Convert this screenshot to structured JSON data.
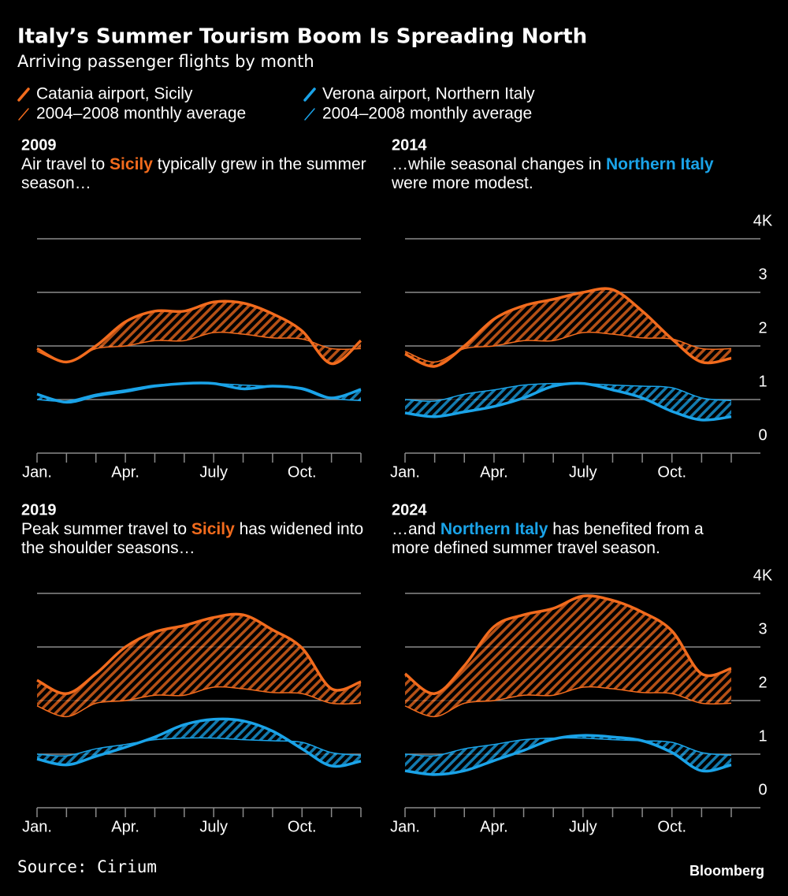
{
  "header": {
    "title": "Italy’s Summer Tourism Boom Is Spreading North",
    "subtitle": "Arriving passenger flights by month"
  },
  "chart_data": [
    {
      "type": "line",
      "title": "2009",
      "annotation": {
        "before": "Air travel to ",
        "highlight": "Sicily",
        "highlight_color": "#f26b1d",
        "after": " typically grew in the summer season…"
      },
      "categories": [
        "Jan.",
        null,
        null,
        "Apr.",
        null,
        null,
        "July",
        null,
        null,
        "Oct.",
        null,
        null
      ],
      "ylim": [
        0,
        4
      ],
      "yticks": [
        0,
        1,
        2,
        3,
        {
          "value": 4,
          "label": "4K"
        }
      ],
      "ytick_labels": false,
      "grid": true,
      "series": [
        {
          "name": "Catania airport, Sicily",
          "color": "#f26b1d",
          "line_width": 3.5,
          "values": [
            1.95,
            1.7,
            2.0,
            2.45,
            2.65,
            2.65,
            2.82,
            2.8,
            2.6,
            2.28,
            1.67,
            2.1
          ]
        },
        {
          "name": "2004–2008 monthly average",
          "color": "#f26b1d",
          "line_width": 1.5,
          "values": [
            1.9,
            1.7,
            1.95,
            2.0,
            2.1,
            2.1,
            2.25,
            2.22,
            2.15,
            2.13,
            1.95,
            1.95
          ]
        },
        {
          "name": "Verona airport, Northern Italy",
          "color": "#1aa3e8",
          "line_width": 3.5,
          "values": [
            1.1,
            0.95,
            1.07,
            1.15,
            1.25,
            1.3,
            1.3,
            1.2,
            1.25,
            1.2,
            1.03,
            1.19
          ]
        },
        {
          "name": "2004–2008 monthly average",
          "color": "#1aa3e8",
          "line_width": 1.5,
          "values": [
            1.0,
            0.97,
            1.1,
            1.18,
            1.27,
            1.3,
            1.3,
            1.27,
            1.25,
            1.22,
            1.03,
            0.98
          ]
        }
      ]
    },
    {
      "type": "line",
      "title": "2014",
      "annotation": {
        "before": "…while seasonal changes in ",
        "highlight": "Northern Italy",
        "highlight_color": "#1aa3e8",
        "after": " were more modest."
      },
      "categories": [
        "Jan.",
        null,
        null,
        "Apr.",
        null,
        null,
        "July",
        null,
        null,
        "Oct.",
        null,
        null
      ],
      "ylim": [
        0,
        4
      ],
      "yticks": [
        0,
        1,
        2,
        3,
        {
          "value": 4,
          "label": "4K"
        }
      ],
      "ytick_labels": true,
      "grid": true,
      "series": [
        {
          "name": "Catania airport, Sicily",
          "color": "#f26b1d",
          "line_width": 3.5,
          "values": [
            1.85,
            1.62,
            2.0,
            2.5,
            2.75,
            2.87,
            3.0,
            3.05,
            2.65,
            2.13,
            1.7,
            1.77
          ]
        },
        {
          "name": "2004–2008 monthly average",
          "color": "#f26b1d",
          "line_width": 1.5,
          "values": [
            1.9,
            1.7,
            1.95,
            2.0,
            2.1,
            2.1,
            2.25,
            2.22,
            2.15,
            2.13,
            1.95,
            1.95
          ]
        },
        {
          "name": "Verona airport, Northern Italy",
          "color": "#1aa3e8",
          "line_width": 3.5,
          "values": [
            0.75,
            0.68,
            0.77,
            0.87,
            1.03,
            1.25,
            1.3,
            1.18,
            1.03,
            0.78,
            0.62,
            0.68
          ]
        },
        {
          "name": "2004–2008 monthly average",
          "color": "#1aa3e8",
          "line_width": 1.5,
          "values": [
            1.0,
            0.97,
            1.1,
            1.18,
            1.27,
            1.3,
            1.3,
            1.27,
            1.25,
            1.22,
            1.03,
            0.98
          ]
        }
      ]
    },
    {
      "type": "line",
      "title": "2019",
      "annotation": {
        "before": "Peak summer travel to ",
        "highlight": "Sicily",
        "highlight_color": "#f26b1d",
        "after": " has widened into the shoulder seasons…"
      },
      "categories": [
        "Jan.",
        null,
        null,
        "Apr.",
        null,
        null,
        "July",
        null,
        null,
        "Oct.",
        null,
        null
      ],
      "ylim": [
        0,
        4
      ],
      "yticks": [
        0,
        1,
        2,
        3,
        {
          "value": 4,
          "label": "4K"
        }
      ],
      "ytick_labels": false,
      "grid": true,
      "series": [
        {
          "name": "Catania airport, Sicily",
          "color": "#f26b1d",
          "line_width": 3.5,
          "values": [
            2.38,
            2.13,
            2.5,
            3.0,
            3.28,
            3.4,
            3.55,
            3.6,
            3.32,
            2.98,
            2.22,
            2.35
          ]
        },
        {
          "name": "2004–2008 monthly average",
          "color": "#f26b1d",
          "line_width": 1.5,
          "values": [
            1.9,
            1.7,
            1.95,
            2.0,
            2.1,
            2.1,
            2.25,
            2.22,
            2.15,
            2.13,
            1.95,
            1.95
          ]
        },
        {
          "name": "Verona airport, Northern Italy",
          "color": "#1aa3e8",
          "line_width": 3.5,
          "values": [
            0.91,
            0.8,
            0.96,
            1.13,
            1.32,
            1.55,
            1.65,
            1.62,
            1.43,
            1.1,
            0.78,
            0.87
          ]
        },
        {
          "name": "2004–2008 monthly average",
          "color": "#1aa3e8",
          "line_width": 1.5,
          "values": [
            1.0,
            0.97,
            1.1,
            1.18,
            1.27,
            1.3,
            1.3,
            1.27,
            1.25,
            1.22,
            1.03,
            0.98
          ]
        }
      ]
    },
    {
      "type": "line",
      "title": "2024",
      "annotation": {
        "before": "…and ",
        "highlight": "Northern Italy",
        "highlight_color": "#1aa3e8",
        "after": " has benefited from a more defined summer travel season."
      },
      "categories": [
        "Jan.",
        null,
        null,
        "Apr.",
        null,
        null,
        "July",
        null,
        null,
        "Oct.",
        null,
        null
      ],
      "ylim": [
        0,
        4
      ],
      "yticks": [
        0,
        1,
        2,
        3,
        {
          "value": 4,
          "label": "4K"
        }
      ],
      "ytick_labels": true,
      "grid": true,
      "series": [
        {
          "name": "Catania airport, Sicily",
          "color": "#f26b1d",
          "line_width": 3.5,
          "values": [
            2.5,
            2.13,
            2.65,
            3.38,
            3.6,
            3.72,
            3.95,
            3.87,
            3.65,
            3.3,
            2.5,
            2.6
          ]
        },
        {
          "name": "2004–2008 monthly average",
          "color": "#f26b1d",
          "line_width": 1.5,
          "values": [
            1.9,
            1.7,
            1.95,
            2.0,
            2.1,
            2.1,
            2.25,
            2.22,
            2.15,
            2.13,
            1.95,
            1.95
          ]
        },
        {
          "name": "Verona airport, Northern Italy",
          "color": "#1aa3e8",
          "line_width": 3.5,
          "values": [
            0.69,
            0.62,
            0.69,
            0.88,
            1.07,
            1.28,
            1.35,
            1.32,
            1.25,
            1.03,
            0.69,
            0.8
          ]
        },
        {
          "name": "2004–2008 monthly average",
          "color": "#1aa3e8",
          "line_width": 1.5,
          "values": [
            1.0,
            0.97,
            1.1,
            1.18,
            1.27,
            1.3,
            1.3,
            1.27,
            1.25,
            1.22,
            1.03,
            0.98
          ]
        }
      ]
    }
  ],
  "footer": {
    "source": "Source: Cirium",
    "brand": "Bloomberg"
  }
}
